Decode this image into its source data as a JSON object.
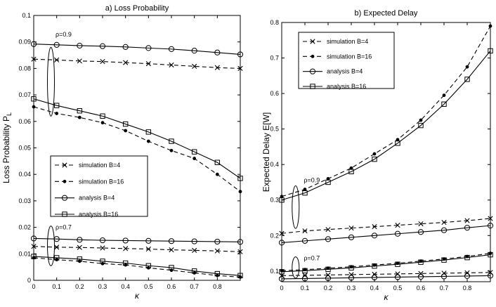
{
  "chart_data": [
    {
      "type": "line",
      "title": "a) Loss Probability",
      "xlabel": "κ",
      "ylabel": "Loss Probability P",
      "ylabel_sub": "L",
      "xlim": [
        0,
        0.9
      ],
      "ylim": [
        0,
        0.1
      ],
      "xticks": [
        "0",
        "0.1",
        "0.2",
        "0.3",
        "0.4",
        "0.5",
        "0.6",
        "0.7",
        "0.8"
      ],
      "yticks": [
        "0",
        "0.01",
        "0.02",
        "0.03",
        "0.04",
        "0.05",
        "0.06",
        "0.07",
        "0.08",
        "0.09",
        "0.1"
      ],
      "grid": false,
      "legend_position": "center-left",
      "annotations": [
        "ρ=0.9",
        "ρ=0.7"
      ],
      "legend": [
        "simulation B=4",
        "simulation B=16",
        "analysis B=4",
        "analysis B=16"
      ],
      "series": [
        {
          "group": "ρ=0.9",
          "style": "sim4",
          "x": [
            0,
            0.1,
            0.2,
            0.3,
            0.4,
            0.5,
            0.6,
            0.7,
            0.8,
            0.9
          ],
          "y": [
            0.0835,
            0.0832,
            0.0828,
            0.0826,
            0.0822,
            0.0818,
            0.0813,
            0.0808,
            0.0803,
            0.08
          ]
        },
        {
          "group": "ρ=0.9",
          "style": "sim16",
          "x": [
            0,
            0.1,
            0.2,
            0.3,
            0.4,
            0.5,
            0.6,
            0.7,
            0.8,
            0.9
          ],
          "y": [
            0.0655,
            0.063,
            0.0615,
            0.0595,
            0.0565,
            0.0525,
            0.049,
            0.046,
            0.04,
            0.0335
          ]
        },
        {
          "group": "ρ=0.9",
          "style": "ana4",
          "x": [
            0,
            0.1,
            0.2,
            0.3,
            0.4,
            0.5,
            0.6,
            0.7,
            0.8,
            0.9
          ],
          "y": [
            0.0892,
            0.0889,
            0.0886,
            0.0884,
            0.0881,
            0.0877,
            0.0873,
            0.0867,
            0.086,
            0.0853
          ]
        },
        {
          "group": "ρ=0.9",
          "style": "ana16",
          "x": [
            0,
            0.1,
            0.2,
            0.3,
            0.4,
            0.5,
            0.6,
            0.7,
            0.8,
            0.9
          ],
          "y": [
            0.0685,
            0.066,
            0.064,
            0.062,
            0.059,
            0.056,
            0.0525,
            0.0485,
            0.0445,
            0.0385
          ]
        },
        {
          "group": "ρ=0.7",
          "style": "sim4",
          "x": [
            0,
            0.1,
            0.2,
            0.3,
            0.4,
            0.5,
            0.6,
            0.7,
            0.8,
            0.9
          ],
          "y": [
            0.0128,
            0.0125,
            0.0124,
            0.0122,
            0.012,
            0.0118,
            0.0115,
            0.0113,
            0.0111,
            0.0108
          ]
        },
        {
          "group": "ρ=0.7",
          "style": "sim16",
          "x": [
            0,
            0.1,
            0.2,
            0.3,
            0.4,
            0.5,
            0.6,
            0.7,
            0.8,
            0.9
          ],
          "y": [
            0.0085,
            0.0078,
            0.0072,
            0.0063,
            0.0058,
            0.0047,
            0.0038,
            0.0028,
            0.0018,
            0.0012
          ]
        },
        {
          "group": "ρ=0.7",
          "style": "ana4",
          "x": [
            0,
            0.1,
            0.2,
            0.3,
            0.4,
            0.5,
            0.6,
            0.7,
            0.8,
            0.9
          ],
          "y": [
            0.0158,
            0.0156,
            0.0153,
            0.0151,
            0.015,
            0.0149,
            0.0148,
            0.0147,
            0.0146,
            0.0145
          ]
        },
        {
          "group": "ρ=0.7",
          "style": "ana16",
          "x": [
            0,
            0.1,
            0.2,
            0.3,
            0.4,
            0.5,
            0.6,
            0.7,
            0.8,
            0.9
          ],
          "y": [
            0.009,
            0.0085,
            0.008,
            0.0072,
            0.0065,
            0.0055,
            0.0048,
            0.0035,
            0.0025,
            0.0018
          ]
        }
      ]
    },
    {
      "type": "line",
      "title": "b) Expected Delay",
      "xlabel": "κ",
      "ylabel": "Expected Delay E[W]",
      "xlim": [
        0,
        0.9
      ],
      "ylim": [
        0.07,
        0.8
      ],
      "xticks": [
        "0",
        "0.1",
        "0.2",
        "0.3",
        "0.4",
        "0.5",
        "0.6",
        "0.7",
        "0.8"
      ],
      "yticks": [
        "0.1",
        "0.2",
        "0.3",
        "0.4",
        "0.5",
        "0.6",
        "0.7",
        "0.8"
      ],
      "grid": false,
      "legend_position": "top-left",
      "annotations": [
        "ρ=0.9",
        "ρ=0.7"
      ],
      "legend": [
        "simulation B=4",
        "simulation B=16",
        "analysis B=4",
        "analysis B=16"
      ],
      "series": [
        {
          "group": "ρ=0.9",
          "style": "sim4",
          "x": [
            0,
            0.1,
            0.2,
            0.3,
            0.4,
            0.5,
            0.6,
            0.7,
            0.8,
            0.9
          ],
          "y": [
            0.206,
            0.213,
            0.217,
            0.221,
            0.225,
            0.229,
            0.233,
            0.237,
            0.242,
            0.248
          ]
        },
        {
          "group": "ρ=0.9",
          "style": "sim16",
          "x": [
            0,
            0.1,
            0.2,
            0.3,
            0.4,
            0.5,
            0.6,
            0.7,
            0.8,
            0.9
          ],
          "y": [
            0.31,
            0.33,
            0.36,
            0.39,
            0.43,
            0.47,
            0.525,
            0.595,
            0.675,
            0.79
          ]
        },
        {
          "group": "ρ=0.9",
          "style": "ana4",
          "x": [
            0,
            0.1,
            0.2,
            0.3,
            0.4,
            0.5,
            0.6,
            0.7,
            0.8,
            0.9
          ],
          "y": [
            0.18,
            0.185,
            0.19,
            0.195,
            0.2,
            0.205,
            0.21,
            0.215,
            0.222,
            0.228
          ]
        },
        {
          "group": "ρ=0.9",
          "style": "ana16",
          "x": [
            0,
            0.1,
            0.2,
            0.3,
            0.4,
            0.5,
            0.6,
            0.7,
            0.8,
            0.9
          ],
          "y": [
            0.3,
            0.32,
            0.35,
            0.38,
            0.415,
            0.46,
            0.51,
            0.57,
            0.64,
            0.72
          ]
        },
        {
          "group": "ρ=0.7",
          "style": "sim4",
          "x": [
            0,
            0.1,
            0.2,
            0.3,
            0.4,
            0.5,
            0.6,
            0.7,
            0.8,
            0.9
          ],
          "y": [
            0.087,
            0.088,
            0.089,
            0.09,
            0.091,
            0.092,
            0.093,
            0.094,
            0.095,
            0.096
          ]
        },
        {
          "group": "ρ=0.7",
          "style": "sim16",
          "x": [
            0,
            0.1,
            0.2,
            0.3,
            0.4,
            0.5,
            0.6,
            0.7,
            0.8,
            0.9
          ],
          "y": [
            0.101,
            0.104,
            0.108,
            0.112,
            0.117,
            0.122,
            0.128,
            0.134,
            0.141,
            0.15
          ]
        },
        {
          "group": "ρ=0.7",
          "style": "ana4",
          "x": [
            0,
            0.1,
            0.2,
            0.3,
            0.4,
            0.5,
            0.6,
            0.7,
            0.8,
            0.9
          ],
          "y": [
            0.078,
            0.079,
            0.08,
            0.081,
            0.082,
            0.083,
            0.084,
            0.085,
            0.086,
            0.087
          ]
        },
        {
          "group": "ρ=0.7",
          "style": "ana16",
          "x": [
            0,
            0.1,
            0.2,
            0.3,
            0.4,
            0.5,
            0.6,
            0.7,
            0.8,
            0.9
          ],
          "y": [
            0.098,
            0.101,
            0.105,
            0.109,
            0.114,
            0.119,
            0.125,
            0.131,
            0.138,
            0.146
          ]
        }
      ]
    }
  ]
}
